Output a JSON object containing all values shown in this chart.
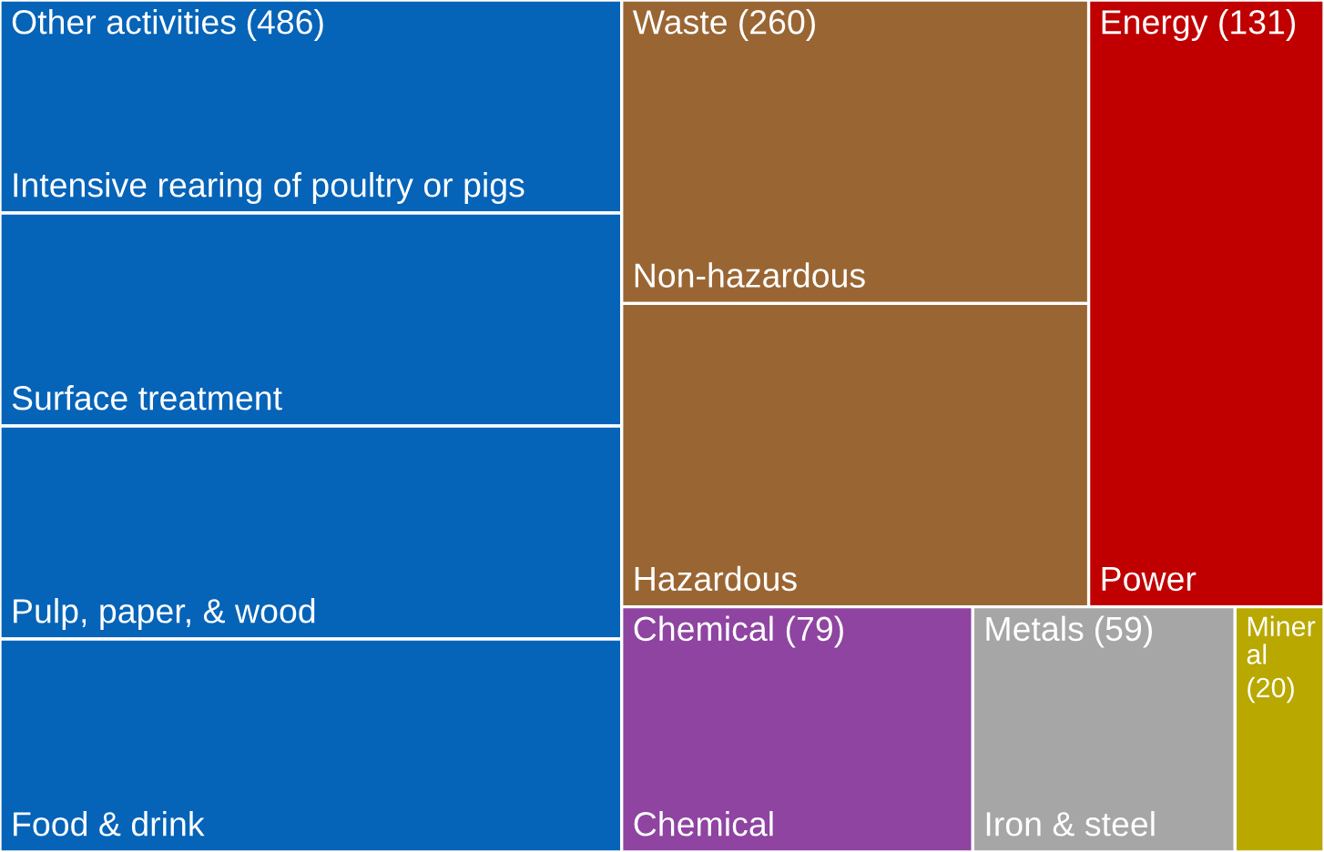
{
  "chart_data": {
    "type": "other",
    "categories": [
      "Other activities",
      "Waste",
      "Energy",
      "Chemical",
      "Metals",
      "Mineral"
    ],
    "value_labels": [
      "(486)",
      "(260)",
      "(131)",
      "(79)",
      "(59)",
      "(20)"
    ],
    "values": [
      486,
      260,
      131,
      79,
      59,
      20
    ],
    "colors": [
      "#0563b8",
      "#996633",
      "#c00000",
      "#8e44a0",
      "#a6a6a6",
      "#b8a800"
    ],
    "annotations": [
      {
        "text": "Intensive rearing of poultry or pigs",
        "x": "Other activities"
      },
      {
        "text": "Surface treatment",
        "x": "Other activities"
      },
      {
        "text": "Pulp, paper, & wood",
        "x": "Other activities"
      },
      {
        "text": "Food & drink",
        "x": "Other activities"
      },
      {
        "text": "Non-hazardous",
        "x": "Waste"
      },
      {
        "text": "Hazardous",
        "x": "Waste"
      },
      {
        "text": "Power",
        "x": "Energy"
      },
      {
        "text": "Chemical",
        "x": "Chemical"
      },
      {
        "text": "Iron & steel",
        "x": "Metals"
      }
    ]
  }
}
